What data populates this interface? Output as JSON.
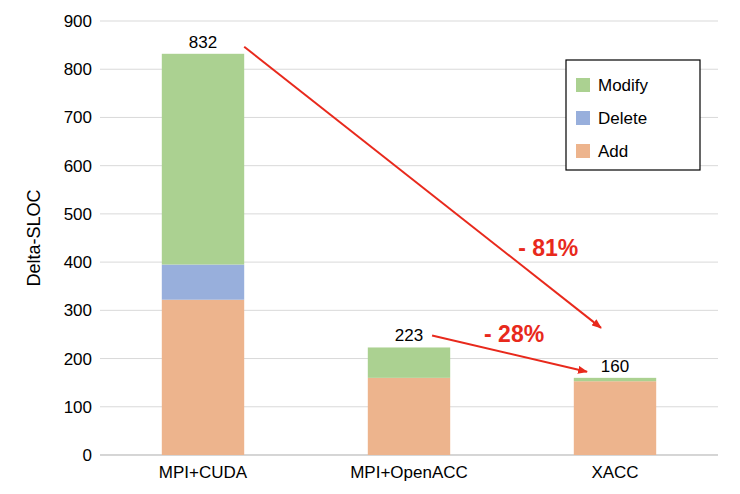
{
  "chart_data": {
    "type": "bar",
    "stacked": true,
    "y_label": "Delta-SLOC",
    "categories": [
      "MPI+CUDA",
      "MPI+OpenACC",
      "XACC"
    ],
    "series": [
      {
        "name": "Add",
        "color": "#edb48d",
        "values": [
          322,
          160,
          153
        ]
      },
      {
        "name": "Delete",
        "color": "#98afdc",
        "values": [
          73,
          0,
          0
        ]
      },
      {
        "name": "Modify",
        "color": "#abd191",
        "values": [
          437,
          63,
          7
        ]
      }
    ],
    "totals": [
      832,
      223,
      160
    ],
    "annotations": [
      {
        "text": "- 81%",
        "from": "MPI+CUDA",
        "to": "XACC",
        "color": "#e8291c"
      },
      {
        "text": "- 28%",
        "from": "MPI+OpenACC",
        "to": "XACC",
        "color": "#e8291c"
      }
    ],
    "ylim": [
      0,
      900
    ],
    "yticks": [
      0,
      100,
      200,
      300,
      400,
      500,
      600,
      700,
      800,
      900
    ],
    "grid": true,
    "legend": "upper right"
  }
}
